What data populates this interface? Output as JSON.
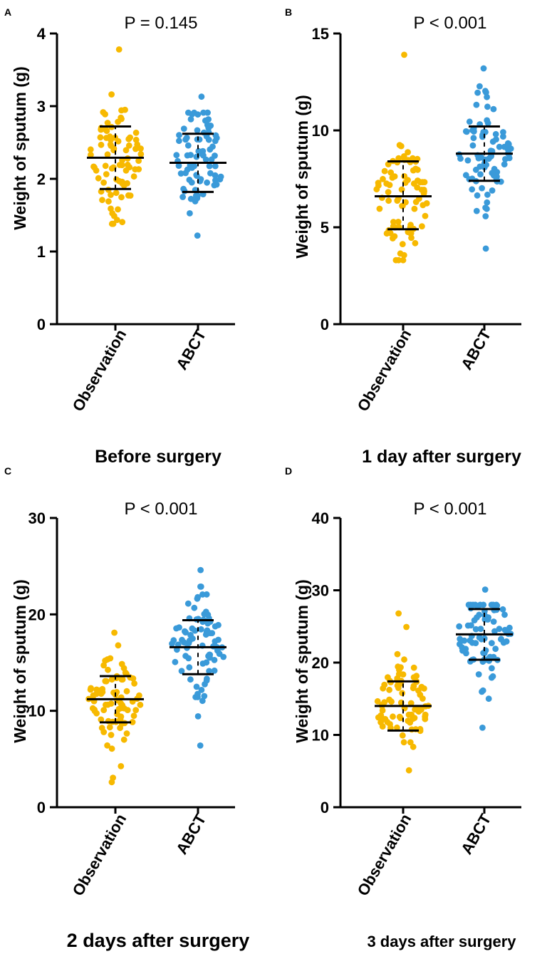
{
  "colors": {
    "observation": "#f7b900",
    "abct": "#3a9ad9",
    "axis": "#000000"
  },
  "chart_data": [
    {
      "panel": "A",
      "type": "scatter",
      "p_value": "P = 0.145",
      "caption": "Before surgery",
      "ylabel": "Weight of sputum (g)",
      "ylim": [
        0,
        4
      ],
      "yticks": [
        0,
        1,
        2,
        3,
        4
      ],
      "categories": [
        "Observation",
        "ABCT"
      ],
      "series": [
        {
          "name": "Observation",
          "mean": 2.29,
          "sd_low": 1.86,
          "sd_high": 2.72,
          "min": 1.38,
          "max": 3.78
        },
        {
          "name": "ABCT",
          "mean": 2.22,
          "sd_low": 1.82,
          "sd_high": 2.62,
          "min": 1.22,
          "max": 3.13
        }
      ]
    },
    {
      "panel": "B",
      "type": "scatter",
      "p_value": "P < 0.001",
      "caption": "1 day after surgery",
      "ylabel": "Weight of sputum (g)",
      "ylim": [
        0,
        15
      ],
      "yticks": [
        0,
        5,
        10,
        15
      ],
      "categories": [
        "Observation",
        "ABCT"
      ],
      "series": [
        {
          "name": "Observation",
          "mean": 6.6,
          "sd_low": 4.9,
          "sd_high": 8.4,
          "min": 3.3,
          "max": 13.9
        },
        {
          "name": "ABCT",
          "mean": 8.8,
          "sd_low": 7.4,
          "sd_high": 10.2,
          "min": 3.9,
          "max": 13.2
        }
      ]
    },
    {
      "panel": "C",
      "type": "scatter",
      "p_value": "P < 0.001",
      "caption": "2 days after surgery",
      "ylabel": "Weight of sputum (g)",
      "ylim": [
        0,
        30
      ],
      "yticks": [
        0,
        10,
        20,
        30
      ],
      "categories": [
        "Observation",
        "ABCT"
      ],
      "series": [
        {
          "name": "Observation",
          "mean": 11.2,
          "sd_low": 8.8,
          "sd_high": 13.6,
          "min": 2.6,
          "max": 18.1
        },
        {
          "name": "ABCT",
          "mean": 16.6,
          "sd_low": 13.8,
          "sd_high": 19.4,
          "min": 6.4,
          "max": 24.6
        }
      ]
    },
    {
      "panel": "D",
      "type": "scatter",
      "p_value": "P < 0.001",
      "caption": "3 days after surgery",
      "ylabel": "Weight of sputum (g)",
      "ylim": [
        0,
        40
      ],
      "yticks": [
        0,
        10,
        20,
        30,
        40
      ],
      "categories": [
        "Observation",
        "ABCT"
      ],
      "series": [
        {
          "name": "Observation",
          "mean": 14.0,
          "sd_low": 10.6,
          "sd_high": 17.4,
          "min": 5.1,
          "max": 26.8
        },
        {
          "name": "ABCT",
          "mean": 23.9,
          "sd_low": 20.4,
          "sd_high": 27.4,
          "min": 11.0,
          "max": 30.1
        }
      ]
    }
  ]
}
